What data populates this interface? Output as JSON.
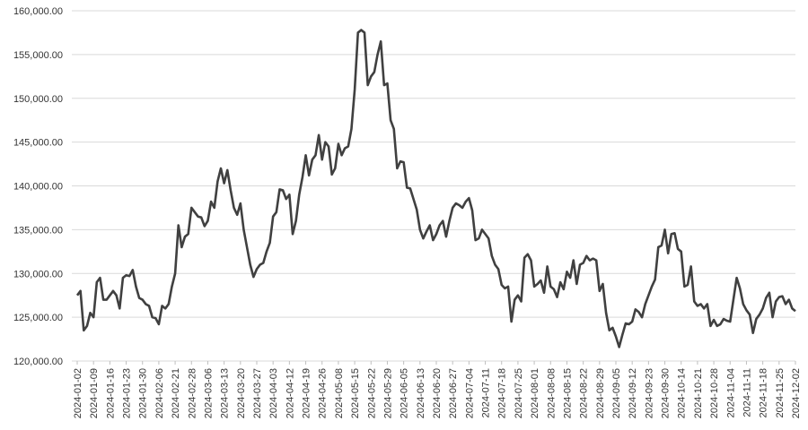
{
  "chart_data": {
    "type": "line",
    "categories": [
      "2024-01-02",
      null,
      null,
      null,
      null,
      "2024-01-09",
      null,
      null,
      null,
      null,
      "2024-01-16",
      null,
      null,
      null,
      null,
      "2024-01-23",
      null,
      null,
      null,
      null,
      "2024-01-30",
      null,
      null,
      null,
      null,
      "2024-02-06",
      null,
      null,
      null,
      null,
      "2024-02-21",
      null,
      null,
      null,
      null,
      "2024-02-28",
      null,
      null,
      null,
      null,
      "2024-03-06",
      null,
      null,
      null,
      null,
      "2024-03-13",
      null,
      null,
      null,
      null,
      "2024-03-20",
      null,
      null,
      null,
      null,
      "2024-03-27",
      null,
      null,
      null,
      null,
      "2024-04-03",
      null,
      null,
      null,
      null,
      "2024-04-12",
      null,
      null,
      null,
      null,
      "2024-04-19",
      null,
      null,
      null,
      null,
      "2024-04-26",
      null,
      null,
      null,
      null,
      "2024-05-08",
      null,
      null,
      null,
      null,
      "2024-05-15",
      null,
      null,
      null,
      null,
      "2024-05-22",
      null,
      null,
      null,
      null,
      "2024-05-29",
      null,
      null,
      null,
      null,
      "2024-06-05",
      null,
      null,
      null,
      null,
      "2024-06-13",
      null,
      null,
      null,
      null,
      "2024-06-20",
      null,
      null,
      null,
      null,
      "2024-06-27",
      null,
      null,
      null,
      null,
      "2024-07-04",
      null,
      null,
      null,
      null,
      "2024-07-11",
      null,
      null,
      null,
      null,
      "2024-07-18",
      null,
      null,
      null,
      null,
      "2024-07-25",
      null,
      null,
      null,
      null,
      "2024-08-01",
      null,
      null,
      null,
      null,
      "2024-08-08",
      null,
      null,
      null,
      null,
      "2024-08-15",
      null,
      null,
      null,
      null,
      "2024-08-22",
      null,
      null,
      null,
      null,
      "2024-08-29",
      null,
      null,
      null,
      null,
      "2024-09-05",
      null,
      null,
      null,
      null,
      "2024-09-12",
      null,
      null,
      null,
      null,
      "2024-09-23",
      null,
      null,
      null,
      null,
      "2024-09-30",
      null,
      null,
      null,
      null,
      "2024-10-14",
      null,
      null,
      null,
      null,
      "2024-10-21",
      null,
      null,
      null,
      null,
      "2024-10-28",
      null,
      null,
      null,
      null,
      "2024-11-04",
      null,
      null,
      null,
      null,
      "2024-11-11",
      null,
      null,
      null,
      null,
      "2024-11-18",
      null,
      null,
      null,
      null,
      "2024-11-25",
      null,
      null,
      null,
      null,
      "2024-12-02"
    ],
    "values": [
      127500,
      128000,
      123500,
      124000,
      125500,
      125000,
      129000,
      129500,
      127000,
      127000,
      127500,
      128000,
      127500,
      126000,
      129500,
      129800,
      129700,
      130400,
      128500,
      127200,
      127000,
      126500,
      126300,
      125000,
      124900,
      124200,
      126300,
      126000,
      126500,
      128500,
      130000,
      135500,
      133000,
      134200,
      134500,
      137500,
      137000,
      136500,
      136400,
      135400,
      136000,
      138200,
      137500,
      140500,
      142000,
      140300,
      141800,
      139500,
      137500,
      136700,
      138000,
      135000,
      133000,
      131000,
      129600,
      130500,
      131000,
      131200,
      132500,
      133500,
      136500,
      137000,
      139600,
      139500,
      138500,
      139000,
      134500,
      136000,
      139000,
      141000,
      143500,
      141200,
      143000,
      143500,
      145800,
      143000,
      145000,
      144500,
      141300,
      142000,
      144800,
      143500,
      144300,
      144500,
      146500,
      151000,
      157500,
      157800,
      157500,
      151500,
      152500,
      153000,
      155000,
      156500,
      151500,
      151700,
      147500,
      146500,
      142000,
      142800,
      142700,
      139800,
      139700,
      138500,
      137300,
      135000,
      134000,
      134800,
      135500,
      133800,
      134500,
      135500,
      136000,
      134200,
      136000,
      137500,
      138000,
      137800,
      137500,
      138200,
      138600,
      137200,
      133800,
      134000,
      135000,
      134500,
      134000,
      132000,
      131000,
      130500,
      128700,
      128300,
      128500,
      124500,
      127000,
      127500,
      126800,
      131800,
      132200,
      131500,
      128500,
      128800,
      129200,
      127800,
      130800,
      128500,
      128200,
      127300,
      129000,
      128200,
      130200,
      129500,
      131500,
      128800,
      131000,
      131200,
      132000,
      131500,
      131700,
      131500,
      128000,
      128800,
      125500,
      123500,
      123800,
      122800,
      121600,
      123000,
      124300,
      124200,
      124500,
      125900,
      125600,
      125000,
      126500,
      127500,
      128500,
      129300,
      133000,
      133200,
      135000,
      132300,
      134500,
      134600,
      132800,
      132500,
      128500,
      128700,
      130800,
      126800,
      126300,
      126500,
      126000,
      126500,
      124000,
      124700,
      124000,
      124200,
      124800,
      124600,
      124500,
      127000,
      129500,
      128300,
      126500,
      125800,
      125300,
      123200,
      124800,
      125300,
      126000,
      127200,
      127800,
      125000,
      126800,
      127300,
      127400,
      126500,
      127000,
      126000,
      125700
    ],
    "color": "#404040",
    "ylim": [
      120000,
      160000
    ],
    "yticks": [
      {
        "value": 120000,
        "label": "120,000.00"
      },
      {
        "value": 125000,
        "label": "125,000.00"
      },
      {
        "value": 130000,
        "label": "130,000.00"
      },
      {
        "value": 135000,
        "label": "135,000.00"
      },
      {
        "value": 140000,
        "label": "140,000.00"
      },
      {
        "value": 145000,
        "label": "145,000.00"
      },
      {
        "value": 150000,
        "label": "150,000.00"
      },
      {
        "value": 155000,
        "label": "155,000.00"
      },
      {
        "value": 160000,
        "label": "160,000.00"
      }
    ],
    "grid": true
  }
}
